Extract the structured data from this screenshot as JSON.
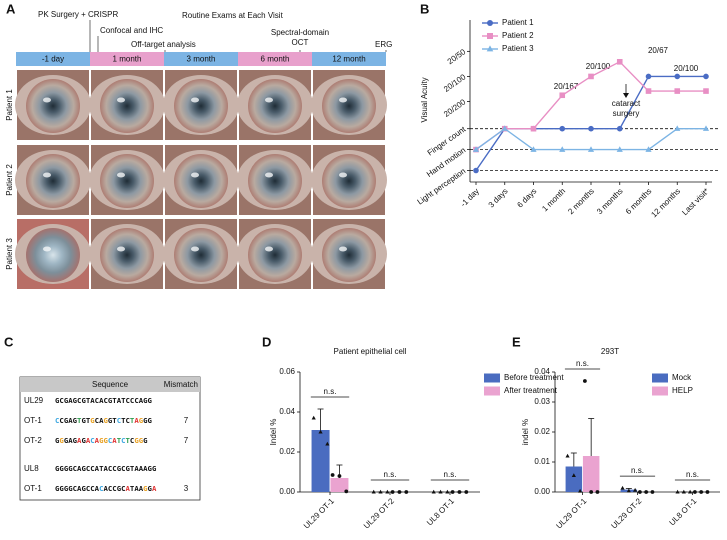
{
  "panel_labels": [
    "A",
    "B",
    "C",
    "D",
    "E"
  ],
  "panel_a": {
    "events": [
      "PK Surgery + CRISPR",
      "Confocal and IHC",
      "Off-target analysis",
      "Routine Exams at Each Visit",
      "Spectral-domain OCT",
      "ERG"
    ],
    "timeline": [
      "-1 day",
      "1 month",
      "3 month",
      "6 month",
      "12 month"
    ],
    "rows": [
      "Patient 1",
      "Patient 2",
      "Patient 3"
    ]
  },
  "panel_c": {
    "header": [
      "Sequence",
      "Mismatch"
    ],
    "groups": [
      {
        "name": "UL29",
        "sequence": "GCGAGCGTACACGTATCCCAGG",
        "off_targets": [
          {
            "name": "OT-1",
            "sequence": "CCGAGTGTGCAGGTCTCTAGGG",
            "mismatch": 7
          },
          {
            "name": "OT-2",
            "sequence": "GGGAGAGACAGGCATCTCGGG",
            "mismatch": 7
          }
        ]
      },
      {
        "name": "UL8",
        "sequence": "GGGGCAGCCATACCGCGTAAAGG",
        "off_targets": [
          {
            "name": "OT-1",
            "sequence": "GGGGCAGCCACACCGCATAAGGA",
            "mismatch": 3
          }
        ]
      }
    ]
  },
  "chart_data": [
    {
      "type": "line",
      "y_label": "Visual Acuity",
      "categories": [
        "-1 day",
        "3 days",
        "6 days",
        "1 month",
        "2 months",
        "3 months",
        "6 months",
        "12 months",
        "Last visit*"
      ],
      "series": [
        {
          "name": "Patient 1",
          "color": "#4a6cc4",
          "marker": "circle",
          "values": [
            1,
            3,
            3,
            3,
            3,
            3,
            5.5,
            5.5,
            5.5
          ]
        },
        {
          "name": "Patient 2",
          "color": "#e88fc4",
          "marker": "square",
          "values": [
            2,
            3,
            3,
            4.6,
            5.5,
            6.2,
            4.8,
            4.8,
            4.8
          ]
        },
        {
          "name": "Patient 3",
          "color": "#7cb4e4",
          "marker": "triangle",
          "values": [
            2,
            3,
            2,
            2,
            2,
            2,
            2,
            3,
            3
          ]
        }
      ],
      "ylim": [
        0.45,
        8.2
      ],
      "yticks": [
        {
          "value": 1,
          "label": "Light perception"
        },
        {
          "value": 2,
          "label": "Hand motion"
        },
        {
          "value": 3,
          "label": "Finger count"
        },
        {
          "value": 4.3,
          "label": "20/200"
        },
        {
          "value": 5.5,
          "label": "20/100"
        },
        {
          "value": 6.7,
          "label": "20/50"
        }
      ],
      "dashed_lines": [
        1,
        2,
        3
      ],
      "annotations": [
        "20/167",
        "20/100",
        "20/67",
        "20/100",
        "cataract surgery"
      ]
    },
    {
      "type": "bar",
      "title": "Patient epithelial cell",
      "y_label": "Indel %",
      "categories": [
        "UL29 OT-1",
        "UL29 OT-2",
        "UL8 OT-1"
      ],
      "series": [
        {
          "name": "Before treatment",
          "color": "#4a6cc0",
          "values": [
            0.031,
            0,
            0
          ],
          "errors": [
            0.0105,
            0,
            0
          ],
          "points": [
            [
              0.037,
              0.03,
              0.024
            ],
            [
              0,
              0,
              0
            ],
            [
              0,
              0,
              0
            ]
          ]
        },
        {
          "name": "After treatment",
          "color": "#eaa3d0",
          "values": [
            0.007,
            0,
            0
          ],
          "errors": [
            0.0065,
            0,
            0
          ],
          "points": [
            [
              0.0085,
              0.008,
              0.0003
            ],
            [
              0,
              0,
              0
            ],
            [
              0,
              0,
              0
            ]
          ]
        }
      ],
      "ylim": [
        0,
        0.06
      ],
      "yticks": [
        {
          "value": 0,
          "label": "0.00"
        },
        {
          "value": 0.02,
          "label": "0.02"
        },
        {
          "value": 0.04,
          "label": "0.04"
        },
        {
          "value": 0.06,
          "label": "0.06"
        }
      ],
      "annotations": [
        "n.s.",
        "n.s.",
        "n.s."
      ]
    },
    {
      "type": "bar",
      "title": "293T",
      "y_label": "indel %",
      "categories": [
        "UL29 OT-1",
        "UL29 OT-2",
        "UL8 OT-1"
      ],
      "series": [
        {
          "name": "Mock",
          "color": "#4a6cc0",
          "values": [
            0.0085,
            0.0008,
            0
          ],
          "errors": [
            0.0045,
            0.0004,
            0
          ],
          "points": [
            [
              0.012,
              0.0055,
              0.0003
            ],
            [
              0.0013,
              0.0004,
              0.0006
            ],
            [
              0,
              0,
              0
            ]
          ]
        },
        {
          "name": "HELP",
          "color": "#eaa3d0",
          "values": [
            0.012,
            0,
            0
          ],
          "errors": [
            0.0125,
            0,
            0
          ],
          "points": [
            [
              0.037,
              0,
              0
            ],
            [
              0,
              0,
              0
            ],
            [
              0,
              0,
              0
            ]
          ]
        }
      ],
      "ylim": [
        0,
        0.04
      ],
      "yticks": [
        {
          "value": 0,
          "label": "0.00"
        },
        {
          "value": 0.01,
          "label": "0.01"
        },
        {
          "value": 0.02,
          "label": "0.02"
        },
        {
          "value": 0.03,
          "label": "0.03"
        },
        {
          "value": 0.04,
          "label": "0.04"
        }
      ],
      "annotations": [
        "n.s.",
        "n.s.",
        "n.s."
      ]
    }
  ]
}
